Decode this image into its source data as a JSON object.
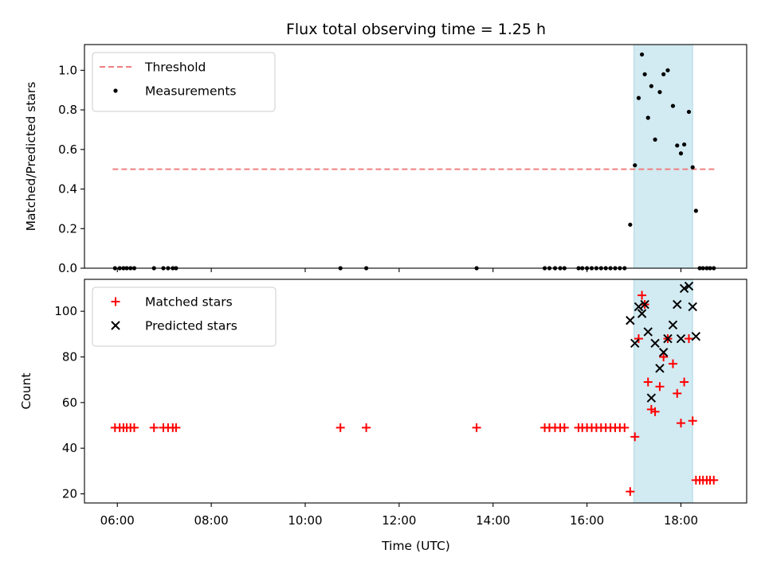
{
  "chart_data": {
    "type": "scatter",
    "title": "Flux total observing time = 1.25 h",
    "xlabel": "Time (UTC)",
    "xlim": [
      5.3,
      19.4
    ],
    "xticks": [
      {
        "value": 6,
        "label": "06:00"
      },
      {
        "value": 8,
        "label": "08:00"
      },
      {
        "value": 10,
        "label": "10:00"
      },
      {
        "value": 12,
        "label": "12:00"
      },
      {
        "value": 14,
        "label": "14:00"
      },
      {
        "value": 16,
        "label": "16:00"
      },
      {
        "value": 18,
        "label": "18:00"
      }
    ],
    "highlight_span": {
      "x0": 17.0,
      "x1": 18.25,
      "color": "#add8e6"
    },
    "panels": [
      {
        "ylabel": "Matched/Predicted stars",
        "ylim": [
          0.0,
          1.13
        ],
        "yticks": [
          {
            "value": 0.0,
            "label": "0.0"
          },
          {
            "value": 0.2,
            "label": "0.2"
          },
          {
            "value": 0.4,
            "label": "0.4"
          },
          {
            "value": 0.6,
            "label": "0.6"
          },
          {
            "value": 0.8,
            "label": "0.8"
          },
          {
            "value": 1.0,
            "label": "1.0"
          }
        ],
        "legend": "top-left",
        "series": [
          {
            "name": "Threshold",
            "kind": "dashed-line",
            "color": "#f08080",
            "x": [
              5.9,
              18.75
            ],
            "y": [
              0.5,
              0.5
            ]
          },
          {
            "name": "Measurements",
            "kind": "dot",
            "color": "#000000",
            "x": [
              5.95,
              6.05,
              6.13,
              6.2,
              6.28,
              6.36,
              6.78,
              6.98,
              7.08,
              7.18,
              7.25,
              10.75,
              11.3,
              13.65,
              15.1,
              15.2,
              15.32,
              15.43,
              15.52,
              15.82,
              15.9,
              16.0,
              16.1,
              16.2,
              16.3,
              16.4,
              16.5,
              16.6,
              16.7,
              16.8,
              16.92,
              17.02,
              17.1,
              17.17,
              17.23,
              17.3,
              17.37,
              17.45,
              17.55,
              17.63,
              17.72,
              17.83,
              17.92,
              18.0,
              18.07,
              18.17,
              18.25,
              18.32,
              18.4,
              18.47,
              18.55,
              18.62,
              18.7
            ],
            "y": [
              0,
              0,
              0,
              0,
              0,
              0,
              0,
              0,
              0,
              0,
              0,
              0,
              0,
              0,
              0,
              0,
              0,
              0,
              0,
              0,
              0,
              0,
              0,
              0,
              0,
              0,
              0,
              0,
              0,
              0,
              0.22,
              0.52,
              0.86,
              1.08,
              0.98,
              0.76,
              0.92,
              0.65,
              0.89,
              0.98,
              1.0,
              0.82,
              0.62,
              0.58,
              0.625,
              0.79,
              0.51,
              0.29,
              0,
              0,
              0,
              0,
              0
            ]
          }
        ]
      },
      {
        "ylabel": "Count",
        "ylim": [
          16,
          114
        ],
        "yticks": [
          {
            "value": 20,
            "label": "20"
          },
          {
            "value": 40,
            "label": "40"
          },
          {
            "value": 60,
            "label": "60"
          },
          {
            "value": 80,
            "label": "80"
          },
          {
            "value": 100,
            "label": "100"
          }
        ],
        "legend": "top-left",
        "series": [
          {
            "name": "Matched stars",
            "kind": "plus",
            "color": "#ff0000",
            "x": [
              5.95,
              6.05,
              6.13,
              6.2,
              6.28,
              6.36,
              6.78,
              6.98,
              7.08,
              7.18,
              7.25,
              10.75,
              11.3,
              13.65,
              15.1,
              15.2,
              15.32,
              15.43,
              15.52,
              15.82,
              15.9,
              16.0,
              16.1,
              16.2,
              16.3,
              16.4,
              16.5,
              16.6,
              16.7,
              16.8,
              16.92,
              17.02,
              17.1,
              17.17,
              17.23,
              17.3,
              17.37,
              17.45,
              17.55,
              17.63,
              17.72,
              17.83,
              17.92,
              18.0,
              18.07,
              18.17,
              18.25,
              18.32,
              18.4,
              18.47,
              18.55,
              18.62,
              18.7
            ],
            "y": [
              49,
              49,
              49,
              49,
              49,
              49,
              49,
              49,
              49,
              49,
              49,
              49,
              49,
              49,
              49,
              49,
              49,
              49,
              49,
              49,
              49,
              49,
              49,
              49,
              49,
              49,
              49,
              49,
              49,
              49,
              21,
              45,
              88,
              107,
              103,
              69,
              57,
              56,
              67,
              80,
              88,
              77,
              64,
              51,
              69,
              88,
              52,
              26,
              26,
              26,
              26,
              26,
              26
            ]
          },
          {
            "name": "Predicted stars",
            "kind": "cross",
            "color": "#000000",
            "x": [
              16.92,
              17.02,
              17.1,
              17.17,
              17.23,
              17.3,
              17.37,
              17.45,
              17.55,
              17.63,
              17.72,
              17.83,
              17.92,
              18.0,
              18.07,
              18.17,
              18.25,
              18.32
            ],
            "y": [
              96,
              86,
              102,
              99,
              103,
              91,
              62,
              86,
              75,
              82,
              88,
              94,
              103,
              88,
              110,
              111,
              102,
              89
            ]
          }
        ]
      }
    ]
  }
}
